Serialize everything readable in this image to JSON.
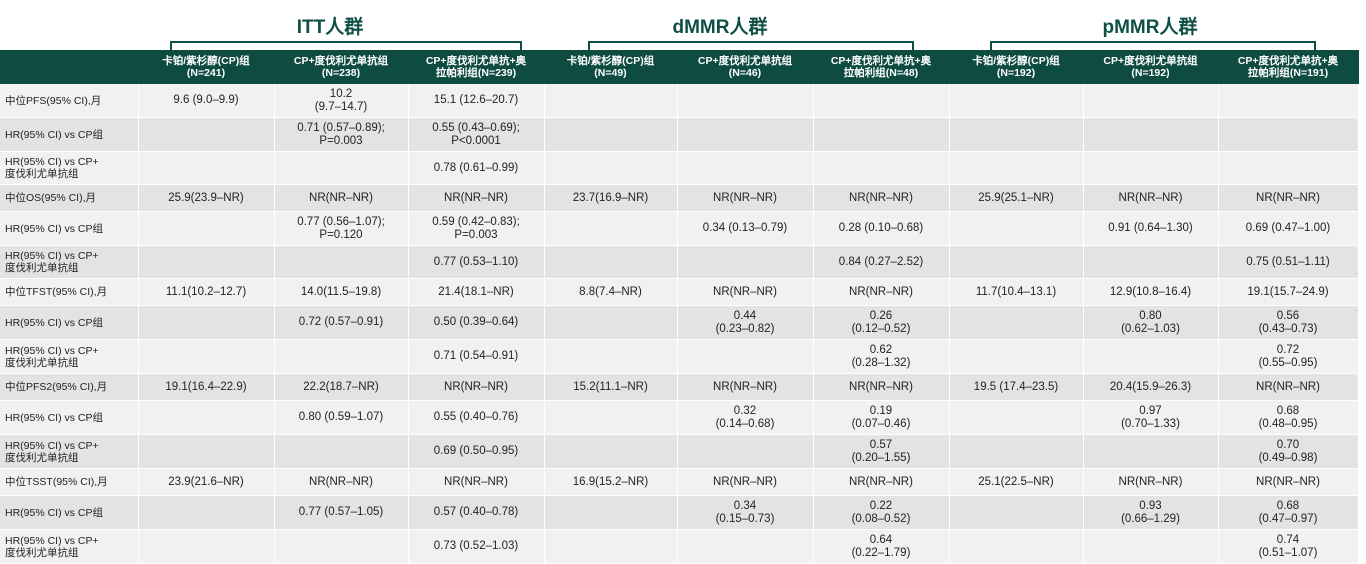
{
  "groups": {
    "itt": "ITT人群",
    "dmmr": "dMMR人群",
    "pmmr": "pMMR人群"
  },
  "headers": [
    "",
    "卡铂/紫杉醇(CP)组\n(N=241)",
    "CP+度伐利尤单抗组\n(N=238)",
    "CP+度伐利尤单抗+奥\n拉帕利组(N=239)",
    "卡铂/紫杉醇(CP)组\n(N=49)",
    "CP+度伐利尤单抗组\n(N=46)",
    "CP+度伐利尤单抗+奥\n拉帕利组(N=48)",
    "卡铂/紫杉醇(CP)组\n(N=192)",
    "CP+度伐利尤单抗组\n(N=192)",
    "CP+度伐利尤单抗+奥\n拉帕利组(N=191)"
  ],
  "rows": [
    [
      "中位PFS(95% CI),月",
      "9.6 (9.0–9.9)",
      "10.2\n(9.7–14.7)",
      "15.1 (12.6–20.7)",
      "",
      "",
      "",
      "",
      "",
      ""
    ],
    [
      "HR(95% CI) vs CP组",
      "",
      "0.71 (0.57–0.89);\nP=0.003",
      "0.55 (0.43–0.69);\nP<0.0001",
      "",
      "",
      "",
      "",
      "",
      ""
    ],
    [
      "HR(95% CI) vs CP+\n度伐利尤单抗组",
      "",
      "",
      "0.78 (0.61–0.99)",
      "",
      "",
      "",
      "",
      "",
      ""
    ],
    [
      "中位OS(95% CI),月",
      "25.9(23.9–NR)",
      "NR(NR–NR)",
      "NR(NR–NR)",
      "23.7(16.9–NR)",
      "NR(NR–NR)",
      "NR(NR–NR)",
      "25.9(25.1–NR)",
      "NR(NR–NR)",
      "NR(NR–NR)"
    ],
    [
      "HR(95% CI) vs CP组",
      "",
      "0.77 (0.56–1.07);\nP=0.120",
      "0.59 (0.42–0.83);\nP=0.003",
      "",
      "0.34 (0.13–0.79)",
      "0.28 (0.10–0.68)",
      "",
      "0.91 (0.64–1.30)",
      "0.69 (0.47–1.00)"
    ],
    [
      "HR(95% CI) vs CP+\n度伐利尤单抗组",
      "",
      "",
      "0.77 (0.53–1.10)",
      "",
      "",
      "0.84 (0.27–2.52)",
      "",
      "",
      "0.75 (0.51–1.11)"
    ],
    [
      "中位TFST(95% CI),月",
      "11.1(10.2–12.7)",
      "14.0(11.5–19.8)",
      "21.4(18.1–NR)",
      "8.8(7.4–NR)",
      "NR(NR–NR)",
      "NR(NR–NR)",
      "11.7(10.4–13.1)",
      "12.9(10.8–16.4)",
      "19.1(15.7–24.9)"
    ],
    [
      "HR(95% CI) vs CP组",
      "",
      "0.72 (0.57–0.91)",
      "0.50 (0.39–0.64)",
      "",
      "0.44\n(0.23–0.82)",
      "0.26\n(0.12–0.52)",
      "",
      "0.80\n(0.62–1.03)",
      "0.56\n(0.43–0.73)"
    ],
    [
      "HR(95% CI) vs CP+\n度伐利尤单抗组",
      "",
      "",
      "0.71 (0.54–0.91)",
      "",
      "",
      "0.62\n(0.28–1.32)",
      "",
      "",
      "0.72\n(0.55–0.95)"
    ],
    [
      "中位PFS2(95% CI),月",
      "19.1(16.4–22.9)",
      "22.2(18.7–NR)",
      "NR(NR–NR)",
      "15.2(11.1–NR)",
      "NR(NR–NR)",
      "NR(NR–NR)",
      "19.5 (17.4–23.5)",
      "20.4(15.9–26.3)",
      "NR(NR–NR)"
    ],
    [
      "HR(95% CI) vs CP组",
      "",
      "0.80 (0.59–1.07)",
      "0.55 (0.40–0.76)",
      "",
      "0.32\n(0.14–0.68)",
      "0.19\n(0.07–0.46)",
      "",
      "0.97\n(0.70–1.33)",
      "0.68\n(0.48–0.95)"
    ],
    [
      "HR(95% CI) vs CP+\n度伐利尤单抗组",
      "",
      "",
      "0.69 (0.50–0.95)",
      "",
      "",
      "0.57\n(0.20–1.55)",
      "",
      "",
      "0.70\n(0.49–0.98)"
    ],
    [
      "中位TSST(95% CI),月",
      "23.9(21.6–NR)",
      "NR(NR–NR)",
      "NR(NR–NR)",
      "16.9(15.2–NR)",
      "NR(NR–NR)",
      "NR(NR–NR)",
      "25.1(22.5–NR)",
      "NR(NR–NR)",
      "NR(NR–NR)"
    ],
    [
      "HR(95% CI) vs CP组",
      "",
      "0.77 (0.57–1.05)",
      "0.57 (0.40–0.78)",
      "",
      "0.34\n(0.15–0.73)",
      "0.22\n(0.08–0.52)",
      "",
      "0.93\n(0.66–1.29)",
      "0.68\n(0.47–0.97)"
    ],
    [
      "HR(95% CI) vs CP+\n度伐利尤单抗组",
      "",
      "",
      "0.73 (0.52–1.03)",
      "",
      "",
      "0.64\n(0.22–1.79)",
      "",
      "",
      "0.74\n(0.51–1.07)"
    ]
  ]
}
